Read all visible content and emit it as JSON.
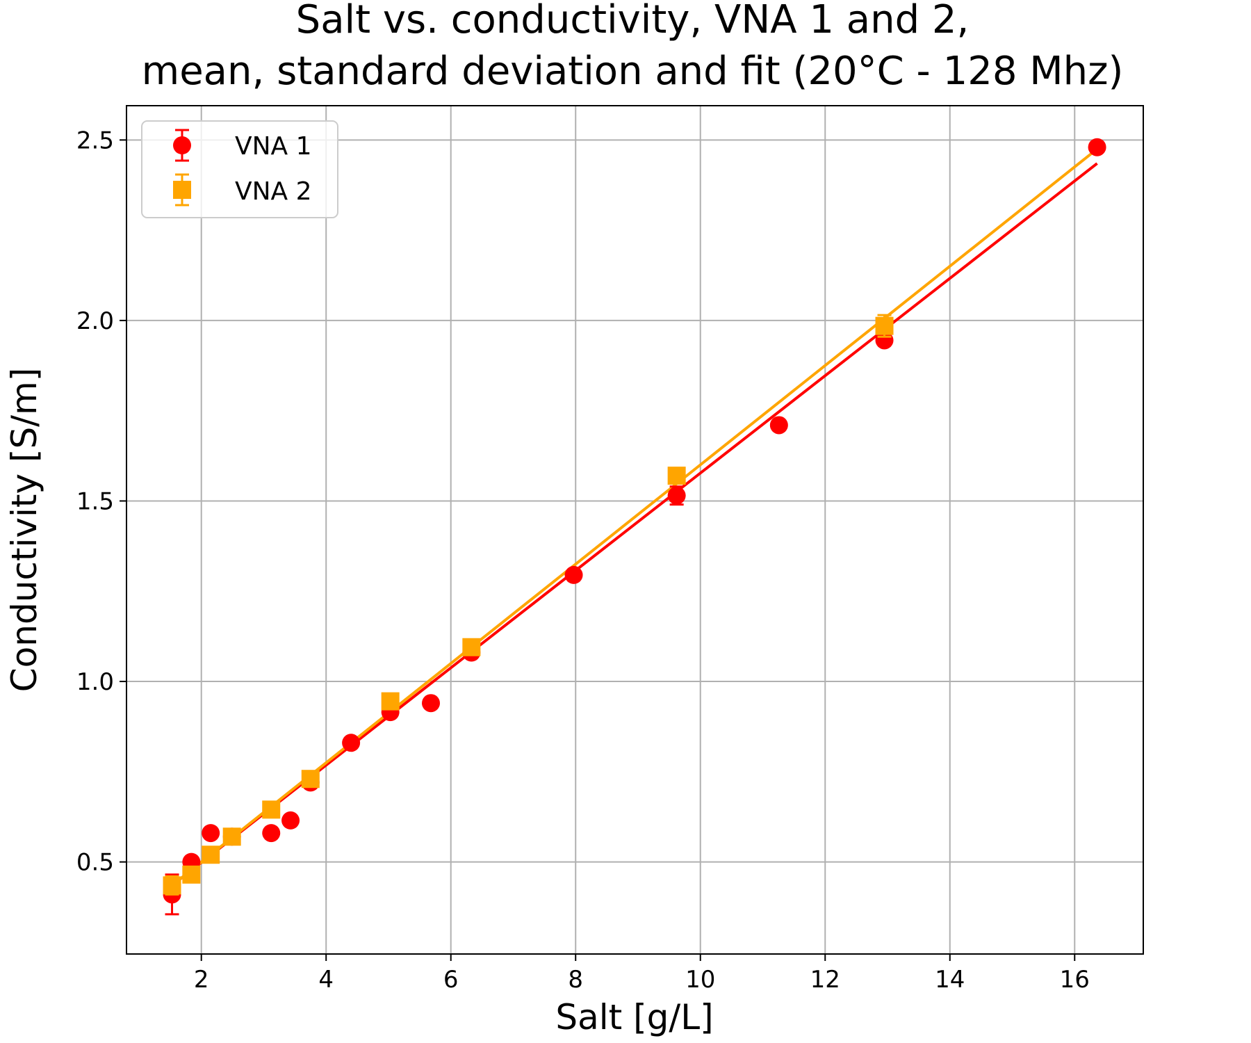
{
  "chart_data": {
    "type": "scatter",
    "title_lines": [
      "Salt vs. conductivity, VNA 1 and 2,",
      "mean, standard deviation and fit (20°C - 128 Mhz)"
    ],
    "xlabel": "Salt [g/L]",
    "ylabel": "Conductivity [S/m]",
    "xlim": [
      0.8,
      17.1
    ],
    "ylim": [
      0.245,
      2.595
    ],
    "xticks": [
      2,
      4,
      6,
      8,
      10,
      12,
      14,
      16
    ],
    "xtick_labels": [
      "2",
      "4",
      "6",
      "8",
      "10",
      "12",
      "14",
      "16"
    ],
    "yticks": [
      0.5,
      1.0,
      1.5,
      2.0,
      2.5
    ],
    "ytick_labels": [
      "0.5",
      "1.0",
      "1.5",
      "2.0",
      "2.5"
    ],
    "grid": true,
    "legend_position": "top-left",
    "series": [
      {
        "name": "VNA 1",
        "color": "#ff0000",
        "marker": "circle",
        "x": [
          1.53,
          1.84,
          2.15,
          2.49,
          3.12,
          3.43,
          3.75,
          4.4,
          5.03,
          5.68,
          6.33,
          7.97,
          9.62,
          11.26,
          12.95,
          16.36
        ],
        "y": [
          0.41,
          0.5,
          0.58,
          0.57,
          0.58,
          0.615,
          0.72,
          0.83,
          0.915,
          0.94,
          1.08,
          1.295,
          1.515,
          1.71,
          1.945,
          2.48
        ],
        "yerr": [
          0.055,
          0.01,
          0.01,
          0.01,
          0.01,
          0.01,
          0.01,
          0.01,
          0.01,
          0.01,
          0.01,
          0.01,
          0.025,
          0.01,
          0.01,
          0.01
        ],
        "fit": {
          "x": [
            1.53,
            16.36
          ],
          "y": [
            0.435,
            2.435
          ]
        }
      },
      {
        "name": "VNA 2",
        "color": "#ffa500",
        "marker": "square",
        "x": [
          1.53,
          1.84,
          2.15,
          2.49,
          3.12,
          3.75,
          5.03,
          6.33,
          9.62,
          12.95
        ],
        "y": [
          0.435,
          0.465,
          0.52,
          0.57,
          0.645,
          0.73,
          0.945,
          1.095,
          1.57,
          1.985
        ],
        "yerr": [
          0.025,
          0.01,
          0.01,
          0.01,
          0.01,
          0.01,
          0.01,
          0.01,
          0.01,
          0.03
        ],
        "fit": {
          "x": [
            1.53,
            16.36
          ],
          "y": [
            0.435,
            2.475
          ]
        }
      }
    ]
  }
}
